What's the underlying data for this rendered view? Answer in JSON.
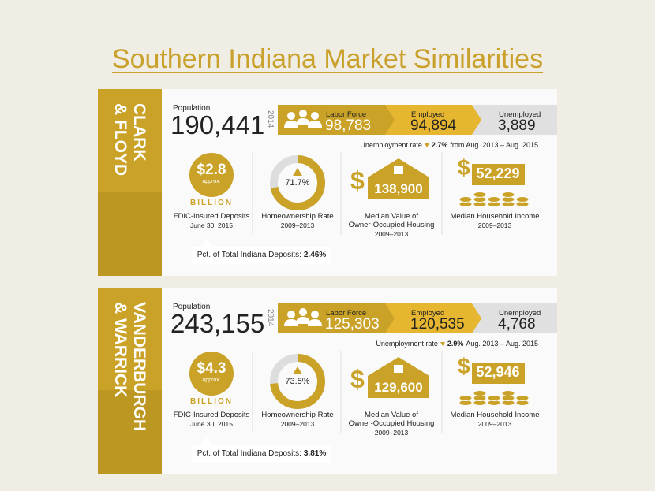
{
  "header": {
    "title": "Southern Indiana Market Similarities"
  },
  "panels": [
    {
      "region": [
        "CLARK",
        "& FLOYD"
      ],
      "population_label": "Population",
      "population": "190,441",
      "year": "2014",
      "labor_force": {
        "label": "Labor Force",
        "value": "98,783"
      },
      "employed": {
        "label": "Employed",
        "value": "94,894"
      },
      "unemployed": {
        "label": "Unemployed",
        "value": "3,889"
      },
      "unemployment_rate": {
        "label": "Unemployment rate",
        "change": "2.7%",
        "period": "from Aug. 2013 – Aug. 2015"
      },
      "deposits": {
        "amount": "$2.8",
        "note": "approx.",
        "unit": "BILLION",
        "label": "FDIC-Insured Deposits",
        "date": "June 30, 2015",
        "share_label": "Pct. of Total Indiana Deposits:",
        "share": "2.46%"
      },
      "homeownership": {
        "value": 71.7,
        "label": "71.7%",
        "title": "Homeownership Rate",
        "period": "2009–2013"
      },
      "home_value": {
        "symbol": "$",
        "amount": "138,900",
        "title": [
          "Median Value of",
          "Owner-Occupied Housing"
        ],
        "period": "2009–2013"
      },
      "income": {
        "symbol": "$",
        "amount": "52,229",
        "title": "Median Household Income",
        "period": "2009–2013"
      }
    },
    {
      "region": [
        "VANDERBURGH",
        "& WARRICK"
      ],
      "population_label": "Population",
      "population": "243,155",
      "year": "2014",
      "labor_force": {
        "label": "Labor Force",
        "value": "125,303"
      },
      "employed": {
        "label": "Employed",
        "value": "120,535"
      },
      "unemployed": {
        "label": "Unemployed",
        "value": "4,768"
      },
      "unemployment_rate": {
        "label": "Unemployment rate",
        "change": "2.9%",
        "period": "Aug. 2013 – Aug. 2015"
      },
      "deposits": {
        "amount": "$4.3",
        "note": "approx.",
        "unit": "BILLION",
        "label": "FDIC-Insured Deposits",
        "date": "June 30, 2015",
        "share_label": "Pct. of Total Indiana Deposits:",
        "share": "3.81%"
      },
      "homeownership": {
        "value": 73.5,
        "label": "73.5%",
        "title": "Homeownership Rate",
        "period": "2009–2013"
      },
      "home_value": {
        "symbol": "$",
        "amount": "129,600",
        "title": [
          "Median Value of",
          "Owner-Occupied Housing"
        ],
        "period": "2009–2013"
      },
      "income": {
        "symbol": "$",
        "amount": "52,946",
        "title": "Median Household Income",
        "period": "2009–2013"
      }
    }
  ]
}
